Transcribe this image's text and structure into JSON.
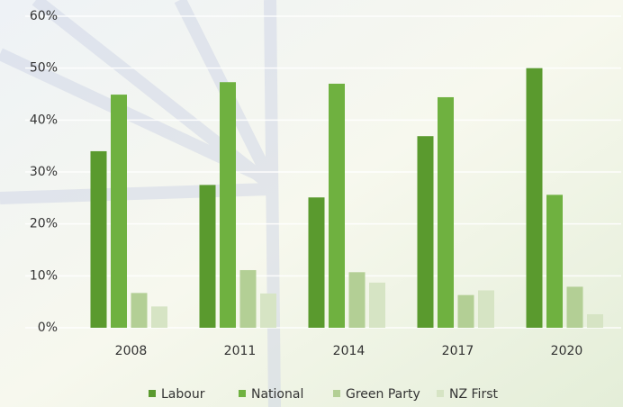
{
  "chart_data": {
    "type": "bar",
    "categories": [
      "2008",
      "2011",
      "2014",
      "2017",
      "2020"
    ],
    "series": [
      {
        "name": "Labour",
        "color": "#5a9a2e",
        "values": [
          34.0,
          27.5,
          25.1,
          36.9,
          50.0
        ]
      },
      {
        "name": "National",
        "color": "#6fb140",
        "values": [
          44.9,
          47.3,
          47.0,
          44.4,
          25.6
        ]
      },
      {
        "name": "Green Party",
        "color": "#b3cf95",
        "values": [
          6.7,
          11.1,
          10.7,
          6.3,
          7.9
        ]
      },
      {
        "name": "NZ First",
        "color": "#d6e4c4",
        "values": [
          4.1,
          6.6,
          8.7,
          7.2,
          2.6
        ]
      }
    ],
    "ylim": [
      0,
      60
    ],
    "yticks": [
      {
        "value": 0,
        "label": "0%"
      },
      {
        "value": 10,
        "label": "10%"
      },
      {
        "value": 20,
        "label": "20%"
      },
      {
        "value": 30,
        "label": "30%"
      },
      {
        "value": 40,
        "label": "40%"
      },
      {
        "value": 50,
        "label": "50%"
      },
      {
        "value": 60,
        "label": "60%"
      }
    ],
    "grid": true,
    "legend": "bottom"
  }
}
